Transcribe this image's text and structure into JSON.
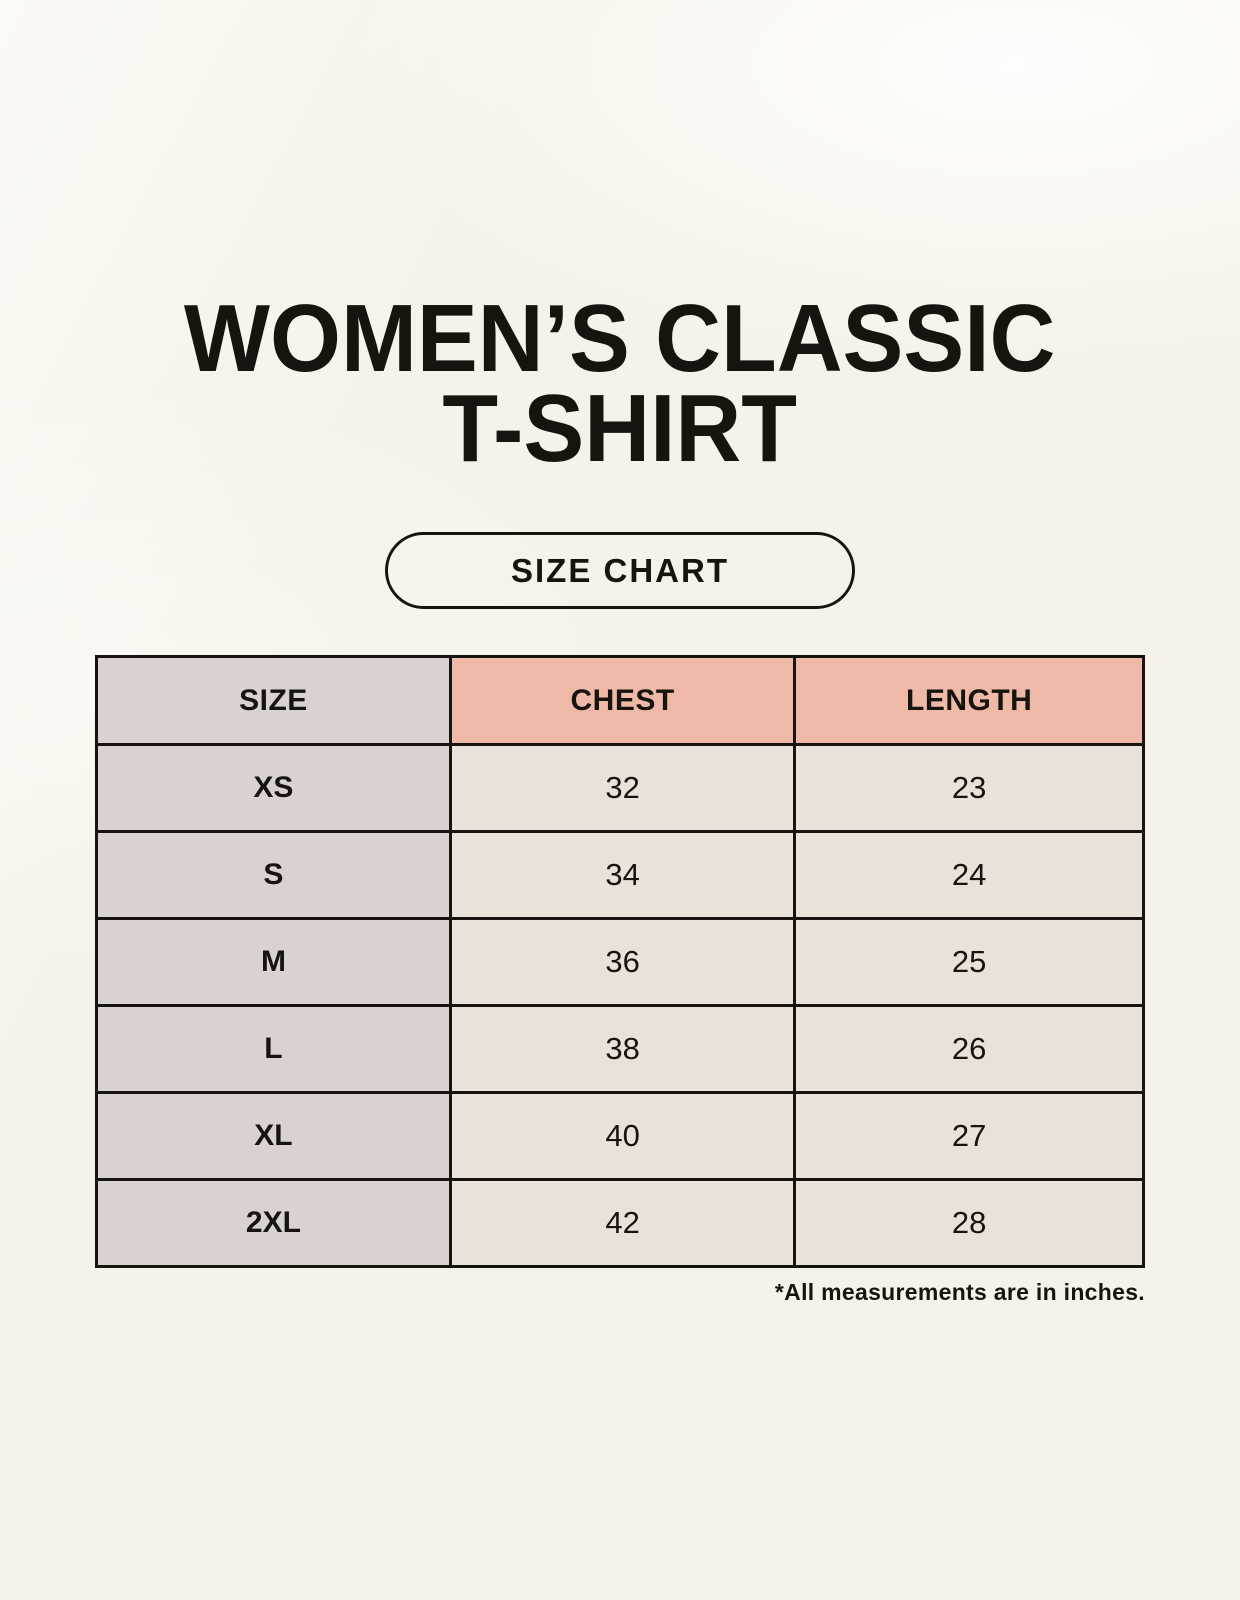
{
  "poster": {
    "title_line1": "WOMEN’S CLASSIC",
    "title_line2": "T-SHIRT",
    "badge_label": "SIZE CHART"
  },
  "colors": {
    "page_bg": "#f7f2e9",
    "header_size_bg": "#d9d2cf",
    "header_measure_bg": "#efb9a8",
    "size_column_bg": "#d9d2cf",
    "value_cell_bg": "#e9e2d8",
    "line": "#17140f",
    "text": "#17140f"
  },
  "chart_data": {
    "type": "table",
    "title": "WOMEN’S CLASSIC T-SHIRT",
    "subtitle": "SIZE CHART",
    "columns": [
      "SIZE",
      "CHEST",
      "LENGTH"
    ],
    "rows": [
      [
        "XS",
        32,
        23
      ],
      [
        "S",
        34,
        24
      ],
      [
        "M",
        36,
        25
      ],
      [
        "L",
        38,
        26
      ],
      [
        "XL",
        40,
        27
      ],
      [
        "2XL",
        42,
        28
      ]
    ],
    "note": "*All measurements are in inches.",
    "units": "inches"
  }
}
